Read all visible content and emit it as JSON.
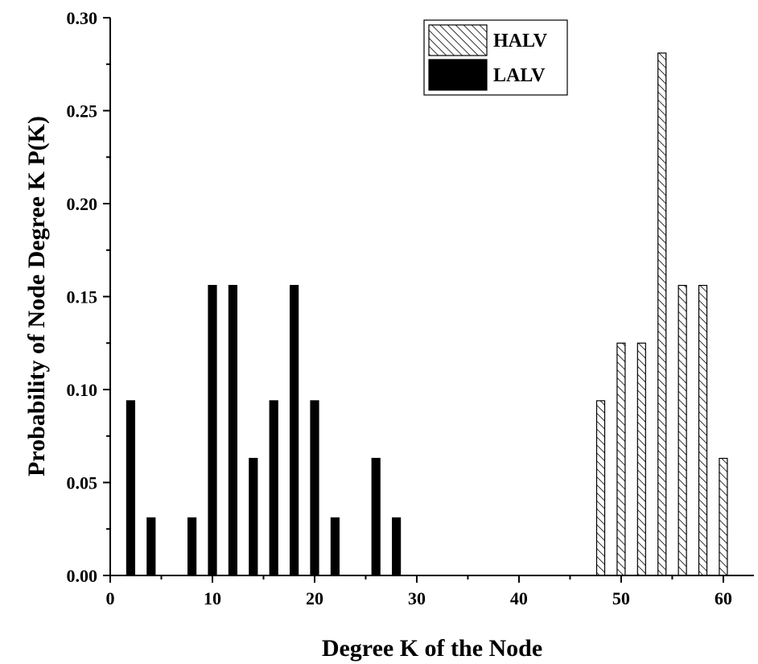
{
  "chart_data": {
    "type": "bar",
    "title": "",
    "xlabel": "Degree K of the Node",
    "ylabel": "Probability of Node Degree K P(K)",
    "xlim": [
      0,
      63
    ],
    "ylim": [
      0,
      0.3
    ],
    "x_ticks": [
      "0",
      "10",
      "20",
      "30",
      "40",
      "50",
      "60"
    ],
    "x_tick_values": [
      0,
      10,
      20,
      30,
      40,
      50,
      60
    ],
    "y_ticks": [
      "0.00",
      "0.05",
      "0.10",
      "0.15",
      "0.20",
      "0.25",
      "0.30"
    ],
    "y_tick_values": [
      0,
      0.05,
      0.1,
      0.15,
      0.2,
      0.25,
      0.3
    ],
    "grid": false,
    "legend_position": "top-right",
    "series": [
      {
        "name": "HALV",
        "fill": "hatched",
        "color": "#000000",
        "x": [
          48,
          50,
          52,
          54,
          56,
          58,
          60
        ],
        "values": [
          0.094,
          0.125,
          0.125,
          0.281,
          0.156,
          0.156,
          0.063
        ]
      },
      {
        "name": "LALV",
        "fill": "solid",
        "color": "#000000",
        "x": [
          2,
          4,
          8,
          10,
          12,
          14,
          16,
          18,
          20,
          22,
          26,
          28
        ],
        "values": [
          0.094,
          0.031,
          0.031,
          0.156,
          0.156,
          0.063,
          0.094,
          0.156,
          0.094,
          0.031,
          0.063,
          0.031
        ]
      }
    ]
  }
}
